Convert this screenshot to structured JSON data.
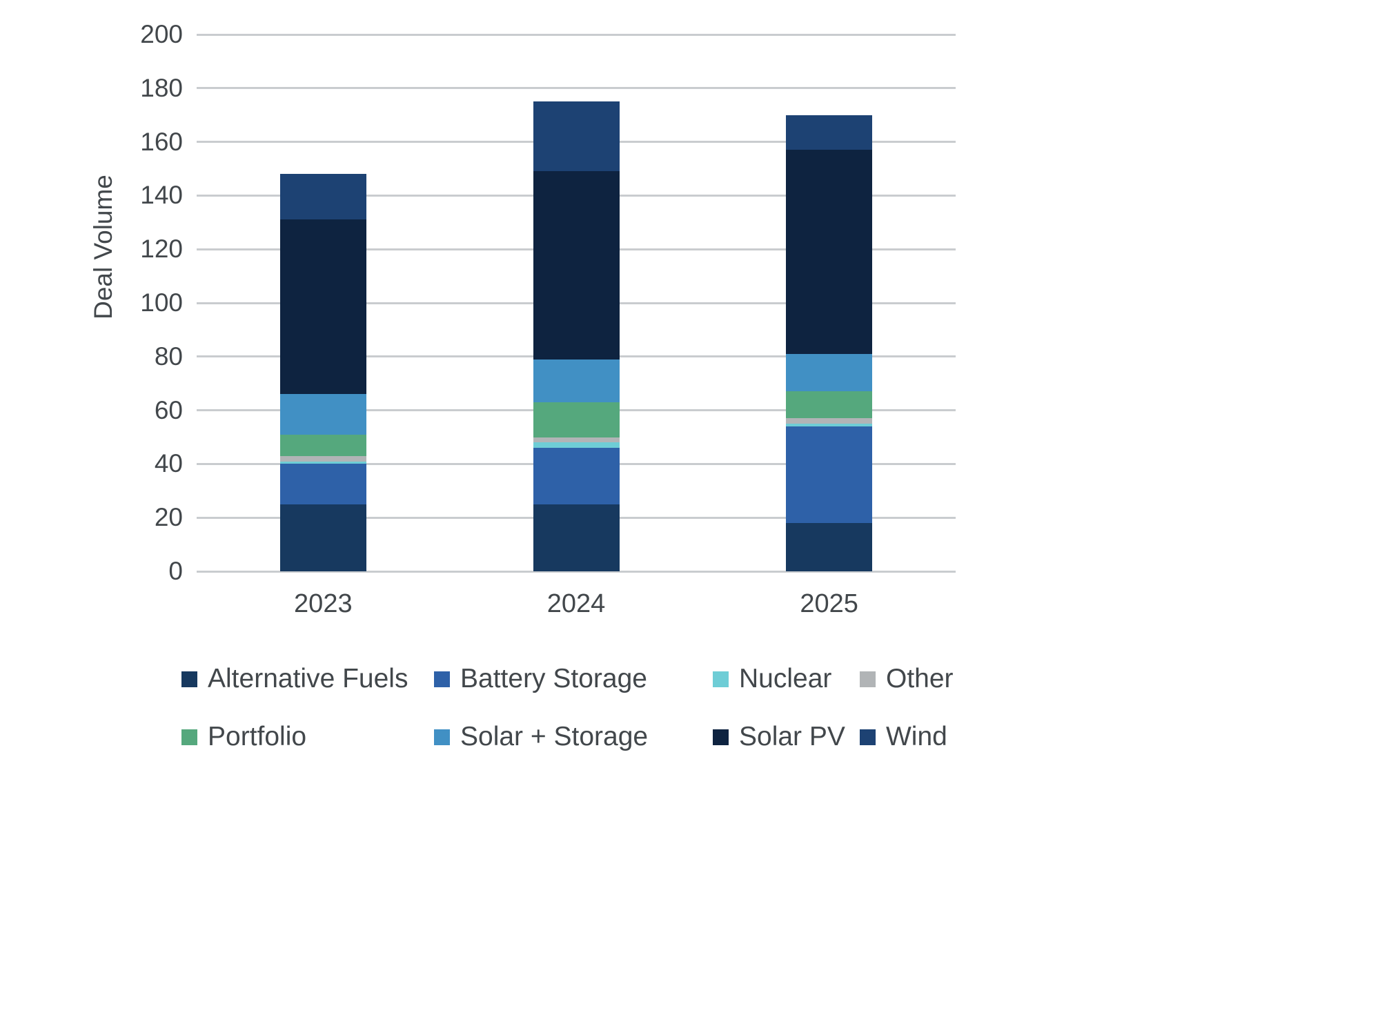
{
  "chart_data": {
    "type": "bar",
    "stacked": true,
    "title": "",
    "xlabel": "",
    "ylabel": "Deal Volume",
    "ylim": [
      0,
      200
    ],
    "ytick_step": 20,
    "grid": true,
    "legend_position": "bottom",
    "categories": [
      "2023",
      "2024",
      "2025"
    ],
    "series": [
      {
        "name": "Alternative Fuels",
        "color": "#17395f",
        "values": [
          25,
          25,
          18
        ]
      },
      {
        "name": "Battery Storage",
        "color": "#2e61a8",
        "values": [
          15,
          21,
          36
        ]
      },
      {
        "name": "Nuclear",
        "color": "#6ecdd6",
        "values": [
          1,
          2,
          1
        ]
      },
      {
        "name": "Other",
        "color": "#b1b4b6",
        "values": [
          2,
          2,
          2
        ]
      },
      {
        "name": "Portfolio",
        "color": "#55a87d",
        "values": [
          8,
          13,
          10
        ]
      },
      {
        "name": "Solar + Storage",
        "color": "#4190c4",
        "values": [
          15,
          16,
          14
        ]
      },
      {
        "name": "Solar PV",
        "color": "#0e2340",
        "values": [
          65,
          70,
          76
        ]
      },
      {
        "name": "Wind",
        "color": "#1d4273",
        "values": [
          17,
          26,
          13
        ]
      }
    ],
    "totals": [
      148,
      175,
      170
    ]
  },
  "colors": {
    "grid": "#c9cccf",
    "axis_text": "#42474b",
    "legend_text": "#42474b",
    "background": "#ffffff"
  }
}
